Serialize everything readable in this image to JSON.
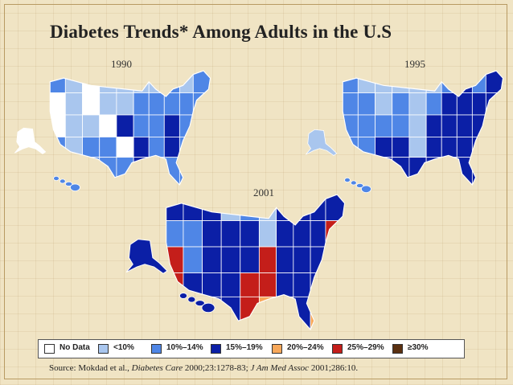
{
  "title": "Diabetes Trends* Among Adults in the U.S",
  "maps": [
    {
      "year": "1990"
    },
    {
      "year": "1995"
    },
    {
      "year": "2001"
    }
  ],
  "legend": [
    {
      "label": "No Data",
      "color": "#ffffff"
    },
    {
      "label": "<10%",
      "color": "#a9c6ee"
    },
    {
      "label": "10%–14%",
      "color": "#4f86e6"
    },
    {
      "label": "15%–19%",
      "color": "#0b1fa6"
    },
    {
      "label": "20%–24%",
      "color": "#f8a85a"
    },
    {
      "label": "25%–29%",
      "color": "#c41e1a"
    },
    {
      "label": "≥30%",
      "color": "#5a3010"
    }
  ],
  "source": {
    "prefix": "Source: Mokdad et al.,",
    "journal1": "Diabetes Care",
    "cite1": "2000;23:1278-83;",
    "journal2": "J Am Med Assoc",
    "cite2": "2001;286:10."
  }
}
